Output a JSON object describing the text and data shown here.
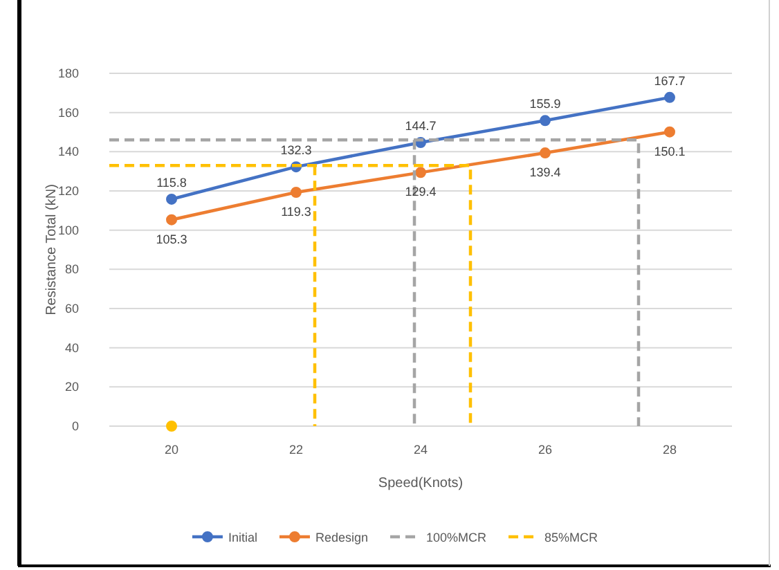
{
  "chart_data": {
    "type": "line",
    "xlabel": "Speed(Knots)",
    "ylabel": "Resistance Total (kN)",
    "x": [
      20,
      22,
      24,
      26,
      28
    ],
    "xlim": [
      19,
      29
    ],
    "xticks": [
      20,
      22,
      24,
      26,
      28
    ],
    "ylim": [
      0,
      180
    ],
    "yticks": [
      0,
      20,
      40,
      60,
      80,
      100,
      120,
      140,
      160,
      180
    ],
    "grid": "y",
    "legend": "bottom",
    "series": [
      {
        "name": "Initial",
        "color": "#4472c4",
        "marker": "circle",
        "values": [
          115.8,
          132.3,
          144.7,
          155.9,
          167.7
        ],
        "value_labels": [
          "115.8",
          "132.3",
          "144.7",
          "155.9",
          "167.7"
        ]
      },
      {
        "name": "Redesign",
        "color": "#ed7d31",
        "marker": "circle",
        "values": [
          105.3,
          119.3,
          129.4,
          139.4,
          150.1
        ],
        "value_labels": [
          "105.3",
          "119.3",
          "129.4",
          "139.4",
          "150.1"
        ]
      },
      {
        "name": "100%MCR",
        "color": "#a5a5a5",
        "line_style": "dashed",
        "x": [
          19,
          27.5,
          27.5
        ],
        "values": [
          146,
          146,
          0
        ]
      },
      {
        "color": "#a5a5a5",
        "line_style": "dashed",
        "x": [
          23.9,
          23.9
        ],
        "values": [
          146,
          0
        ]
      },
      {
        "name": "85%MCR",
        "color": "#ffc000",
        "line_style": "dashed",
        "x": [
          19,
          24.8,
          24.8
        ],
        "values": [
          133,
          133,
          0
        ]
      },
      {
        "color": "#ffc000",
        "line_style": "dashed",
        "x": [
          22.3,
          22.3
        ],
        "values": [
          133,
          0
        ]
      },
      {
        "type": "scatter",
        "color": "#ffc000",
        "marker": "circle",
        "x": [
          20
        ],
        "values": [
          0
        ]
      }
    ]
  }
}
